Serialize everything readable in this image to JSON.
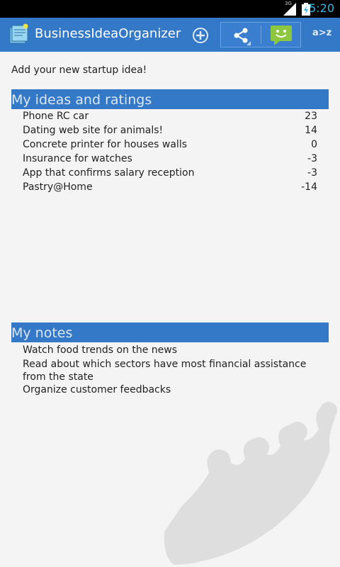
{
  "status_bar": {
    "time": "5:20",
    "network": "3G"
  },
  "action_bar": {
    "title": "BusinessIdeaOrganizer",
    "add_icon": "add-circle-icon",
    "share_icon": "share-icon",
    "smile_icon": "android-smile-icon",
    "sort_label": "a>z",
    "color": "#3478c8"
  },
  "content": {
    "add_idea_label": "Add your new startup idea!",
    "ideas_header": "My ideas and ratings",
    "ideas": [
      {
        "name": "Phone RC car",
        "score": "23"
      },
      {
        "name": "Dating web site for animals!",
        "score": "14"
      },
      {
        "name": "Concrete printer for houses walls",
        "score": "0"
      },
      {
        "name": "Insurance for watches",
        "score": "-3"
      },
      {
        "name": "App that confirms salary reception",
        "score": "-3"
      },
      {
        "name": "Pastry@Home",
        "score": "-14"
      }
    ],
    "notes_header": "My notes",
    "notes": [
      "Watch food trends on the news",
      "Read about which sectors have most financial assistance from the state",
      "Organize customer feedbacks"
    ],
    "watermark_icon": "crown-icon"
  }
}
